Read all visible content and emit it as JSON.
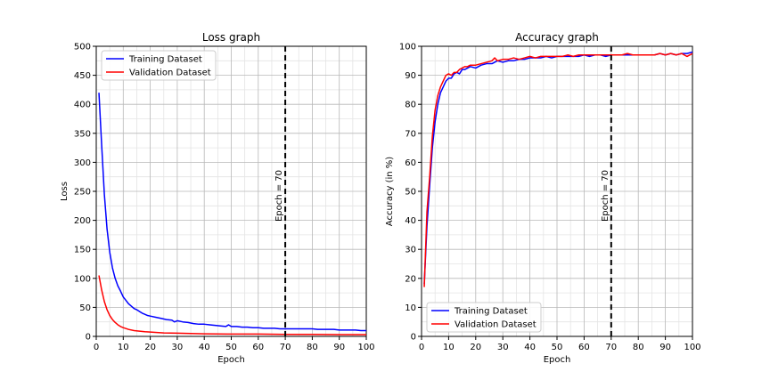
{
  "chart_data": [
    {
      "type": "line",
      "title": "Loss graph",
      "xlabel": "Epoch",
      "ylabel": "Loss",
      "xlim": [
        0,
        100
      ],
      "ylim": [
        0,
        500
      ],
      "xticks": [
        0,
        10,
        20,
        30,
        40,
        50,
        60,
        70,
        80,
        90,
        100
      ],
      "yticks": [
        0,
        50,
        100,
        150,
        200,
        250,
        300,
        350,
        400,
        450,
        500
      ],
      "grid": true,
      "legend_position": "top-left",
      "series": [
        {
          "name": "Training Dataset",
          "color": "#0000ff",
          "points": [
            [
              1,
              420
            ],
            [
              2,
              330
            ],
            [
              3,
              245
            ],
            [
              4,
              185
            ],
            [
              5,
              145
            ],
            [
              6,
              118
            ],
            [
              7,
              100
            ],
            [
              8,
              87
            ],
            [
              9,
              78
            ],
            [
              10,
              68
            ],
            [
              11,
              62
            ],
            [
              12,
              56
            ],
            [
              13,
              52
            ],
            [
              14,
              48
            ],
            [
              15,
              46
            ],
            [
              16,
              43
            ],
            [
              17,
              40
            ],
            [
              18,
              38
            ],
            [
              19,
              36
            ],
            [
              20,
              35
            ],
            [
              22,
              33
            ],
            [
              24,
              31
            ],
            [
              26,
              29
            ],
            [
              28,
              28
            ],
            [
              29,
              25
            ],
            [
              30,
              27
            ],
            [
              32,
              25
            ],
            [
              34,
              24
            ],
            [
              36,
              22
            ],
            [
              38,
              21
            ],
            [
              40,
              21
            ],
            [
              42,
              20
            ],
            [
              44,
              19
            ],
            [
              46,
              18
            ],
            [
              48,
              17
            ],
            [
              49,
              20
            ],
            [
              50,
              17
            ],
            [
              52,
              17
            ],
            [
              54,
              16
            ],
            [
              56,
              16
            ],
            [
              58,
              15
            ],
            [
              60,
              15
            ],
            [
              62,
              14
            ],
            [
              64,
              14
            ],
            [
              66,
              14
            ],
            [
              68,
              13
            ],
            [
              70,
              13
            ],
            [
              72,
              13
            ],
            [
              74,
              13
            ],
            [
              76,
              13
            ],
            [
              78,
              13
            ],
            [
              80,
              13
            ],
            [
              82,
              12
            ],
            [
              84,
              12
            ],
            [
              86,
              12
            ],
            [
              88,
              12
            ],
            [
              90,
              11
            ],
            [
              92,
              11
            ],
            [
              94,
              11
            ],
            [
              96,
              11
            ],
            [
              98,
              10
            ],
            [
              100,
              10
            ]
          ]
        },
        {
          "name": "Validation Dataset",
          "color": "#ff0000",
          "points": [
            [
              1,
              105
            ],
            [
              2,
              80
            ],
            [
              3,
              60
            ],
            [
              4,
              46
            ],
            [
              5,
              36
            ],
            [
              6,
              29
            ],
            [
              7,
              24
            ],
            [
              8,
              20
            ],
            [
              9,
              17
            ],
            [
              10,
              15
            ],
            [
              12,
              12
            ],
            [
              14,
              10
            ],
            [
              16,
              9
            ],
            [
              18,
              8
            ],
            [
              20,
              7.5
            ],
            [
              25,
              6
            ],
            [
              30,
              5.5
            ],
            [
              35,
              5
            ],
            [
              40,
              4.5
            ],
            [
              50,
              4
            ],
            [
              60,
              4
            ],
            [
              70,
              3.5
            ],
            [
              80,
              3.5
            ],
            [
              90,
              3
            ],
            [
              100,
              3
            ]
          ]
        }
      ],
      "annotations": [
        {
          "type": "vline",
          "x": 70,
          "style": "dashed",
          "color": "#000000",
          "label": "Epoch = 70"
        }
      ]
    },
    {
      "type": "line",
      "title": "Accuracy graph",
      "xlabel": "Epoch",
      "ylabel": "Accuracy (in %)",
      "xlim": [
        0,
        100
      ],
      "ylim": [
        0,
        100
      ],
      "xticks": [
        0,
        10,
        20,
        30,
        40,
        50,
        60,
        70,
        80,
        90,
        100
      ],
      "yticks": [
        0,
        10,
        20,
        30,
        40,
        50,
        60,
        70,
        80,
        90,
        100
      ],
      "grid": true,
      "legend_position": "bottom-left",
      "series": [
        {
          "name": "Training Dataset",
          "color": "#0000ff",
          "points": [
            [
              1,
              18
            ],
            [
              2,
              38
            ],
            [
              3,
              52
            ],
            [
              4,
              65
            ],
            [
              5,
              74
            ],
            [
              6,
              80
            ],
            [
              7,
              84
            ],
            [
              8,
              86
            ],
            [
              9,
              88
            ],
            [
              10,
              89
            ],
            [
              11,
              89
            ],
            [
              12,
              90.5
            ],
            [
              13,
              91
            ],
            [
              14,
              90.5
            ],
            [
              15,
              92
            ],
            [
              16,
              92
            ],
            [
              17,
              92.5
            ],
            [
              18,
              93
            ],
            [
              20,
              92.5
            ],
            [
              22,
              93.5
            ],
            [
              24,
              94
            ],
            [
              26,
              94
            ],
            [
              28,
              95
            ],
            [
              30,
              94.5
            ],
            [
              32,
              95
            ],
            [
              34,
              95
            ],
            [
              36,
              95.5
            ],
            [
              38,
              95.5
            ],
            [
              40,
              96
            ],
            [
              42,
              96
            ],
            [
              44,
              96
            ],
            [
              46,
              96.5
            ],
            [
              48,
              96
            ],
            [
              50,
              96.5
            ],
            [
              52,
              96.5
            ],
            [
              54,
              96.5
            ],
            [
              56,
              96.5
            ],
            [
              58,
              96.5
            ],
            [
              60,
              97
            ],
            [
              62,
              96.5
            ],
            [
              64,
              97
            ],
            [
              66,
              97
            ],
            [
              68,
              96.5
            ],
            [
              70,
              97
            ],
            [
              72,
              97
            ],
            [
              74,
              97
            ],
            [
              76,
              97
            ],
            [
              78,
              97
            ],
            [
              80,
              97
            ],
            [
              82,
              97
            ],
            [
              84,
              97
            ],
            [
              86,
              97
            ],
            [
              88,
              97.5
            ],
            [
              90,
              97
            ],
            [
              92,
              97.5
            ],
            [
              94,
              97
            ],
            [
              96,
              97.5
            ],
            [
              98,
              97.5
            ],
            [
              100,
              98
            ]
          ]
        },
        {
          "name": "Validation Dataset",
          "color": "#ff0000",
          "points": [
            [
              1,
              17
            ],
            [
              2,
              43
            ],
            [
              3,
              55
            ],
            [
              4,
              69
            ],
            [
              5,
              78
            ],
            [
              6,
              83
            ],
            [
              7,
              86
            ],
            [
              8,
              88
            ],
            [
              9,
              90
            ],
            [
              10,
              90.5
            ],
            [
              11,
              90
            ],
            [
              12,
              91
            ],
            [
              13,
              91
            ],
            [
              14,
              92
            ],
            [
              15,
              92.5
            ],
            [
              16,
              93
            ],
            [
              17,
              93
            ],
            [
              18,
              93.5
            ],
            [
              20,
              93.5
            ],
            [
              22,
              94
            ],
            [
              24,
              94.5
            ],
            [
              26,
              95
            ],
            [
              27,
              96
            ],
            [
              28,
              95
            ],
            [
              30,
              95.5
            ],
            [
              32,
              95.5
            ],
            [
              34,
              96
            ],
            [
              36,
              95.5
            ],
            [
              38,
              96
            ],
            [
              40,
              96.5
            ],
            [
              42,
              96
            ],
            [
              44,
              96.5
            ],
            [
              46,
              96.5
            ],
            [
              48,
              96.5
            ],
            [
              50,
              96.5
            ],
            [
              52,
              96.5
            ],
            [
              54,
              97
            ],
            [
              56,
              96.5
            ],
            [
              58,
              97
            ],
            [
              60,
              97
            ],
            [
              62,
              97
            ],
            [
              64,
              97
            ],
            [
              66,
              97
            ],
            [
              68,
              97
            ],
            [
              70,
              97
            ],
            [
              72,
              97
            ],
            [
              74,
              97
            ],
            [
              76,
              97.5
            ],
            [
              78,
              97
            ],
            [
              80,
              97
            ],
            [
              82,
              97
            ],
            [
              84,
              97
            ],
            [
              86,
              97
            ],
            [
              88,
              97.5
            ],
            [
              90,
              97
            ],
            [
              92,
              97.5
            ],
            [
              94,
              97
            ],
            [
              96,
              97.5
            ],
            [
              98,
              96.5
            ],
            [
              100,
              97.5
            ]
          ]
        }
      ],
      "annotations": [
        {
          "type": "vline",
          "x": 70,
          "style": "dashed",
          "color": "#000000",
          "label": "Epoch = 70"
        }
      ]
    }
  ]
}
